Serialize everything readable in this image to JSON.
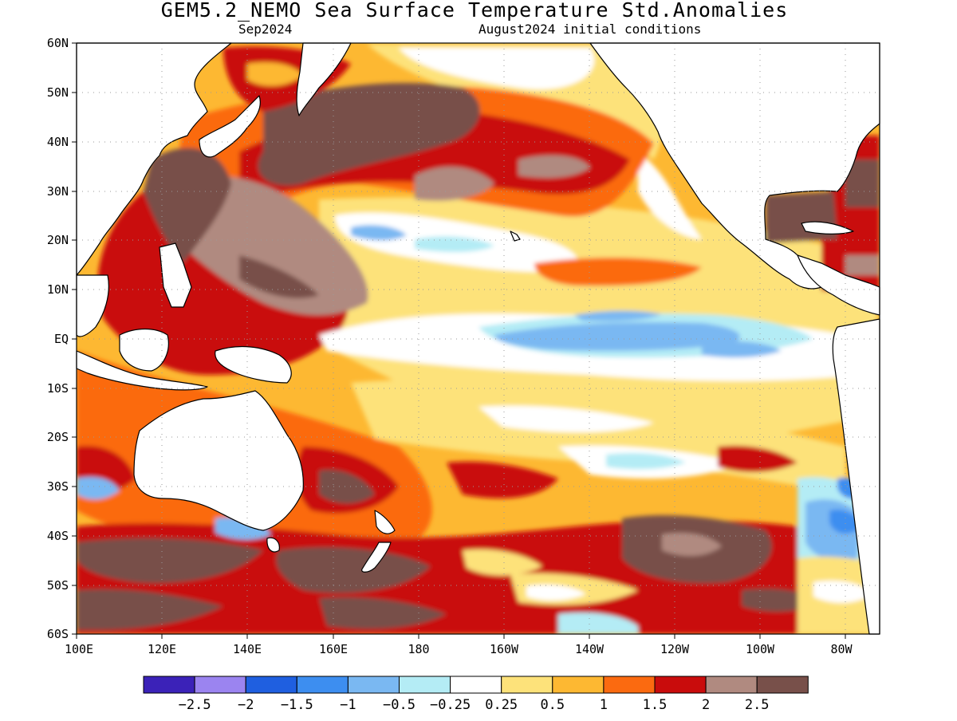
{
  "title": "GEM5.2_NEMO Sea Surface Temperature Std.Anomalies",
  "subtitle_left": "Sep2024",
  "subtitle_right": "August2024 initial conditions",
  "lat_ticks": [
    "60N",
    "50N",
    "40N",
    "30N",
    "20N",
    "10N",
    "EQ",
    "10S",
    "20S",
    "30S",
    "40S",
    "50S",
    "60S"
  ],
  "lon_ticks": [
    "100E",
    "120E",
    "140E",
    "160E",
    "180",
    "160W",
    "140W",
    "120W",
    "100W",
    "80W"
  ],
  "colorbar": {
    "colors": [
      "#3b22b8",
      "#9b84f0",
      "#1f5fe0",
      "#3d8ef0",
      "#7ab8f2",
      "#b4ecf5",
      "#ffffff",
      "#fde27a",
      "#fdb832",
      "#fb6a10",
      "#c90c0c",
      "#b08a80",
      "#78504a"
    ],
    "labels": [
      "−2.5",
      "−2",
      "−1.5",
      "−1",
      "−0.5",
      "−0.25",
      "0.25",
      "0.5",
      "1",
      "1.5",
      "2",
      "2.5"
    ]
  },
  "land_color": "#ffffff",
  "coast_color": "#000000",
  "grid_color": "#9a9a9a"
}
